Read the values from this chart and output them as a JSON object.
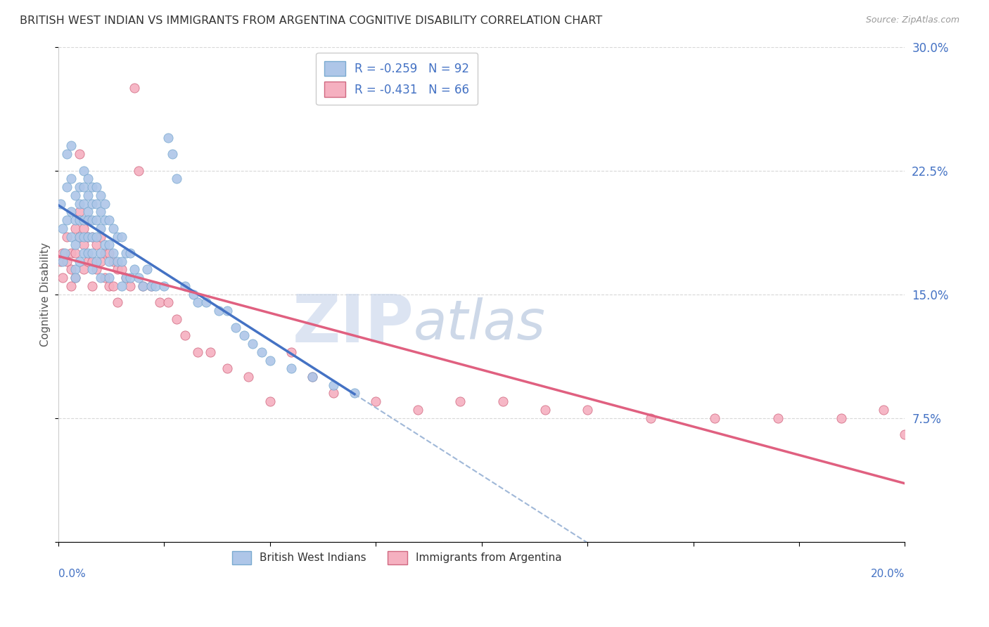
{
  "title": "BRITISH WEST INDIAN VS IMMIGRANTS FROM ARGENTINA COGNITIVE DISABILITY CORRELATION CHART",
  "source": "Source: ZipAtlas.com",
  "ylabel": "Cognitive Disability",
  "xlim": [
    0.0,
    0.2
  ],
  "ylim": [
    0.0,
    0.3
  ],
  "series1": {
    "name": "British West Indians",
    "color": "#aec6e8",
    "edge_color": "#7aaad0",
    "line_color": "#4472c4",
    "R": -0.259,
    "N": 92,
    "x": [
      0.0005,
      0.001,
      0.001,
      0.0015,
      0.002,
      0.002,
      0.002,
      0.003,
      0.003,
      0.003,
      0.003,
      0.004,
      0.004,
      0.004,
      0.004,
      0.004,
      0.005,
      0.005,
      0.005,
      0.005,
      0.005,
      0.006,
      0.006,
      0.006,
      0.006,
      0.006,
      0.006,
      0.007,
      0.007,
      0.007,
      0.007,
      0.007,
      0.007,
      0.008,
      0.008,
      0.008,
      0.008,
      0.008,
      0.008,
      0.009,
      0.009,
      0.009,
      0.009,
      0.009,
      0.01,
      0.01,
      0.01,
      0.01,
      0.01,
      0.011,
      0.011,
      0.011,
      0.012,
      0.012,
      0.012,
      0.012,
      0.013,
      0.013,
      0.014,
      0.014,
      0.015,
      0.015,
      0.015,
      0.016,
      0.016,
      0.017,
      0.017,
      0.018,
      0.019,
      0.02,
      0.021,
      0.022,
      0.023,
      0.025,
      0.026,
      0.027,
      0.028,
      0.03,
      0.032,
      0.033,
      0.035,
      0.038,
      0.04,
      0.042,
      0.044,
      0.046,
      0.048,
      0.05,
      0.055,
      0.06,
      0.065,
      0.07
    ],
    "y": [
      0.205,
      0.17,
      0.19,
      0.175,
      0.235,
      0.215,
      0.195,
      0.24,
      0.22,
      0.2,
      0.185,
      0.21,
      0.195,
      0.18,
      0.165,
      0.16,
      0.215,
      0.205,
      0.195,
      0.185,
      0.17,
      0.225,
      0.215,
      0.205,
      0.195,
      0.185,
      0.175,
      0.22,
      0.21,
      0.2,
      0.195,
      0.185,
      0.175,
      0.215,
      0.205,
      0.195,
      0.185,
      0.175,
      0.165,
      0.215,
      0.205,
      0.195,
      0.185,
      0.17,
      0.21,
      0.2,
      0.19,
      0.175,
      0.16,
      0.205,
      0.195,
      0.18,
      0.195,
      0.18,
      0.17,
      0.16,
      0.19,
      0.175,
      0.185,
      0.17,
      0.185,
      0.17,
      0.155,
      0.175,
      0.16,
      0.175,
      0.16,
      0.165,
      0.16,
      0.155,
      0.165,
      0.155,
      0.155,
      0.155,
      0.245,
      0.235,
      0.22,
      0.155,
      0.15,
      0.145,
      0.145,
      0.14,
      0.14,
      0.13,
      0.125,
      0.12,
      0.115,
      0.11,
      0.105,
      0.1,
      0.095,
      0.09
    ]
  },
  "series2": {
    "name": "Immigrants from Argentina",
    "color": "#f5b0c0",
    "edge_color": "#d06880",
    "line_color": "#e06080",
    "R": -0.431,
    "N": 66,
    "x": [
      0.0005,
      0.001,
      0.001,
      0.002,
      0.002,
      0.003,
      0.003,
      0.003,
      0.004,
      0.004,
      0.004,
      0.005,
      0.005,
      0.005,
      0.006,
      0.006,
      0.006,
      0.007,
      0.007,
      0.007,
      0.008,
      0.008,
      0.008,
      0.009,
      0.009,
      0.01,
      0.01,
      0.011,
      0.011,
      0.012,
      0.012,
      0.013,
      0.013,
      0.014,
      0.014,
      0.015,
      0.016,
      0.017,
      0.018,
      0.019,
      0.02,
      0.022,
      0.024,
      0.026,
      0.028,
      0.03,
      0.033,
      0.036,
      0.04,
      0.045,
      0.05,
      0.055,
      0.06,
      0.065,
      0.075,
      0.085,
      0.095,
      0.105,
      0.115,
      0.125,
      0.14,
      0.155,
      0.17,
      0.185,
      0.195,
      0.2
    ],
    "y": [
      0.17,
      0.175,
      0.16,
      0.185,
      0.17,
      0.175,
      0.165,
      0.155,
      0.19,
      0.175,
      0.16,
      0.235,
      0.2,
      0.185,
      0.19,
      0.18,
      0.165,
      0.195,
      0.185,
      0.17,
      0.185,
      0.17,
      0.155,
      0.18,
      0.165,
      0.185,
      0.17,
      0.175,
      0.16,
      0.175,
      0.155,
      0.17,
      0.155,
      0.165,
      0.145,
      0.165,
      0.16,
      0.155,
      0.275,
      0.225,
      0.155,
      0.155,
      0.145,
      0.145,
      0.135,
      0.125,
      0.115,
      0.115,
      0.105,
      0.1,
      0.085,
      0.115,
      0.1,
      0.09,
      0.085,
      0.08,
      0.085,
      0.085,
      0.08,
      0.08,
      0.075,
      0.075,
      0.075,
      0.075,
      0.08,
      0.065
    ]
  },
  "watermark_zip": "ZIP",
  "watermark_atlas": "atlas",
  "background_color": "#ffffff",
  "grid_color": "#d8d8d8",
  "dashed_line_color": "#a0b8d8"
}
